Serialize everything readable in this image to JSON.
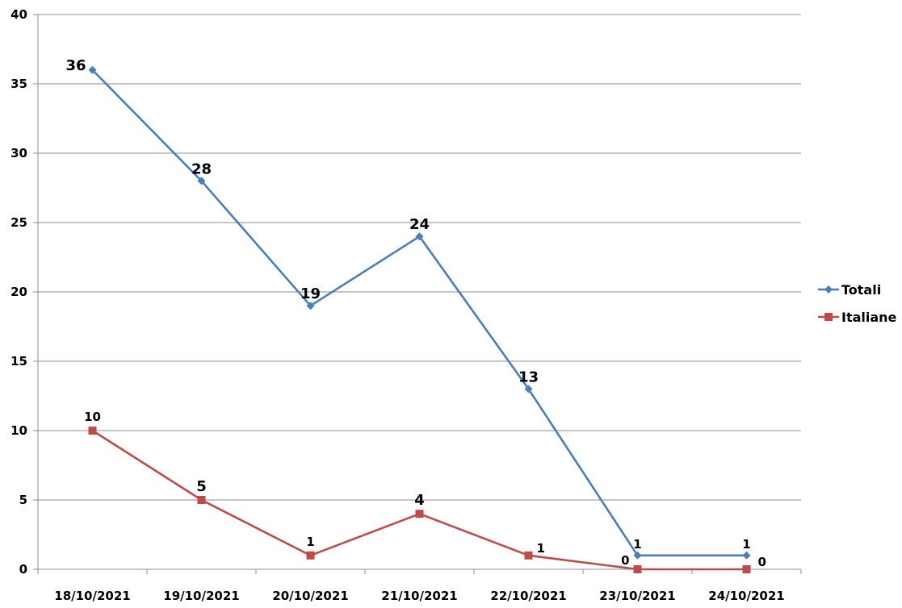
{
  "chart_data": {
    "type": "line",
    "categories": [
      "18/10/2021",
      "19/10/2021",
      "20/10/2021",
      "21/10/2021",
      "22/10/2021",
      "23/10/2021",
      "24/10/2021"
    ],
    "series": [
      {
        "name": "Totali",
        "values": [
          36,
          28,
          19,
          24,
          13,
          1,
          1
        ],
        "color": "#4a7ebb",
        "marker": "diamond"
      },
      {
        "name": "Italiane",
        "values": [
          10,
          5,
          1,
          4,
          1,
          0,
          0
        ],
        "color": "#be4b48",
        "marker": "square"
      }
    ],
    "ylim": [
      0,
      40
    ],
    "yticks": [
      0,
      5,
      10,
      15,
      20,
      25,
      30,
      35,
      40
    ],
    "grid": true,
    "legend": "right",
    "title": "",
    "xlabel": "",
    "ylabel": ""
  }
}
